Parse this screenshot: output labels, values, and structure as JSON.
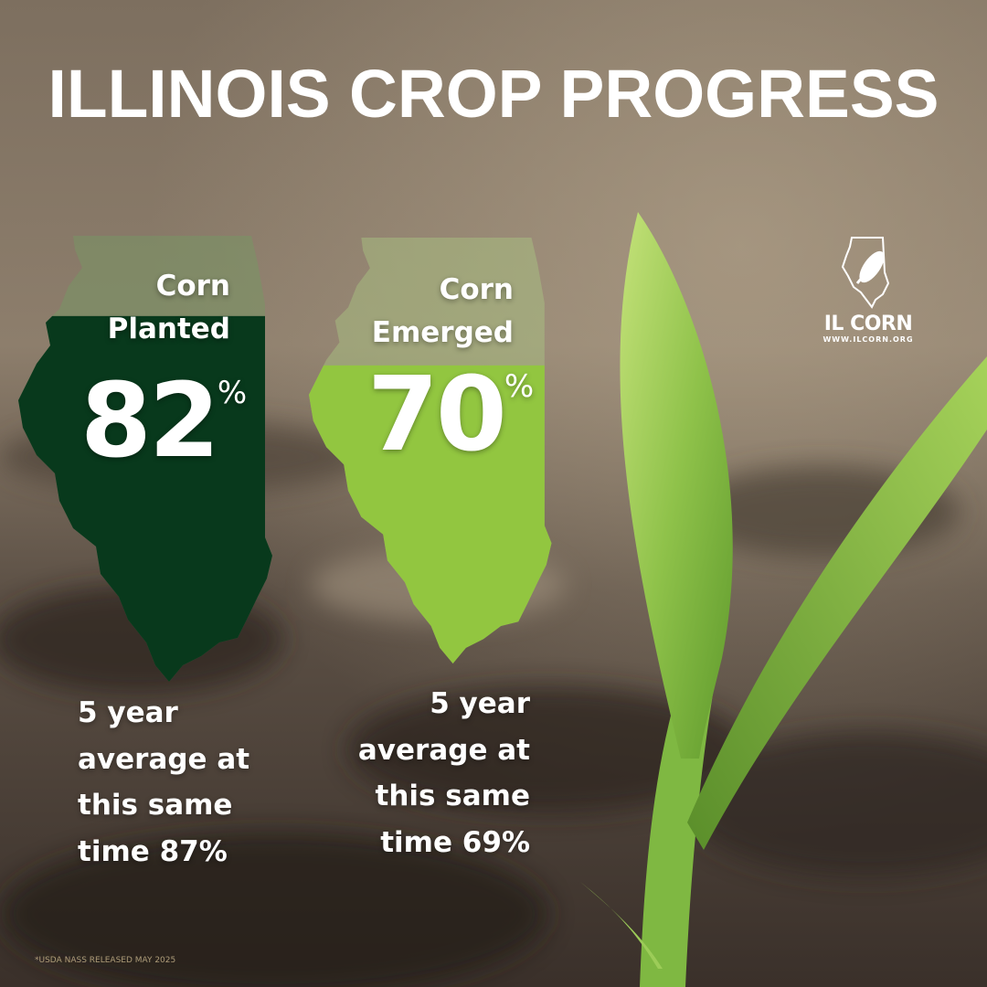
{
  "title": "ILLINOIS CROP PROGRESS",
  "stats": [
    {
      "label": "Corn Planted",
      "value": 82,
      "unit": "%",
      "note": "5 year average at this same time 87%"
    },
    {
      "label": "Corn Emerged",
      "value": 70,
      "unit": "%",
      "note": "5 year average at this same time 69%"
    }
  ],
  "logo": {
    "name": "IL CORN",
    "url": "WWW.ILCORN.ORG"
  },
  "footnote": "*USDA NASS RELEASED MAY 2025"
}
